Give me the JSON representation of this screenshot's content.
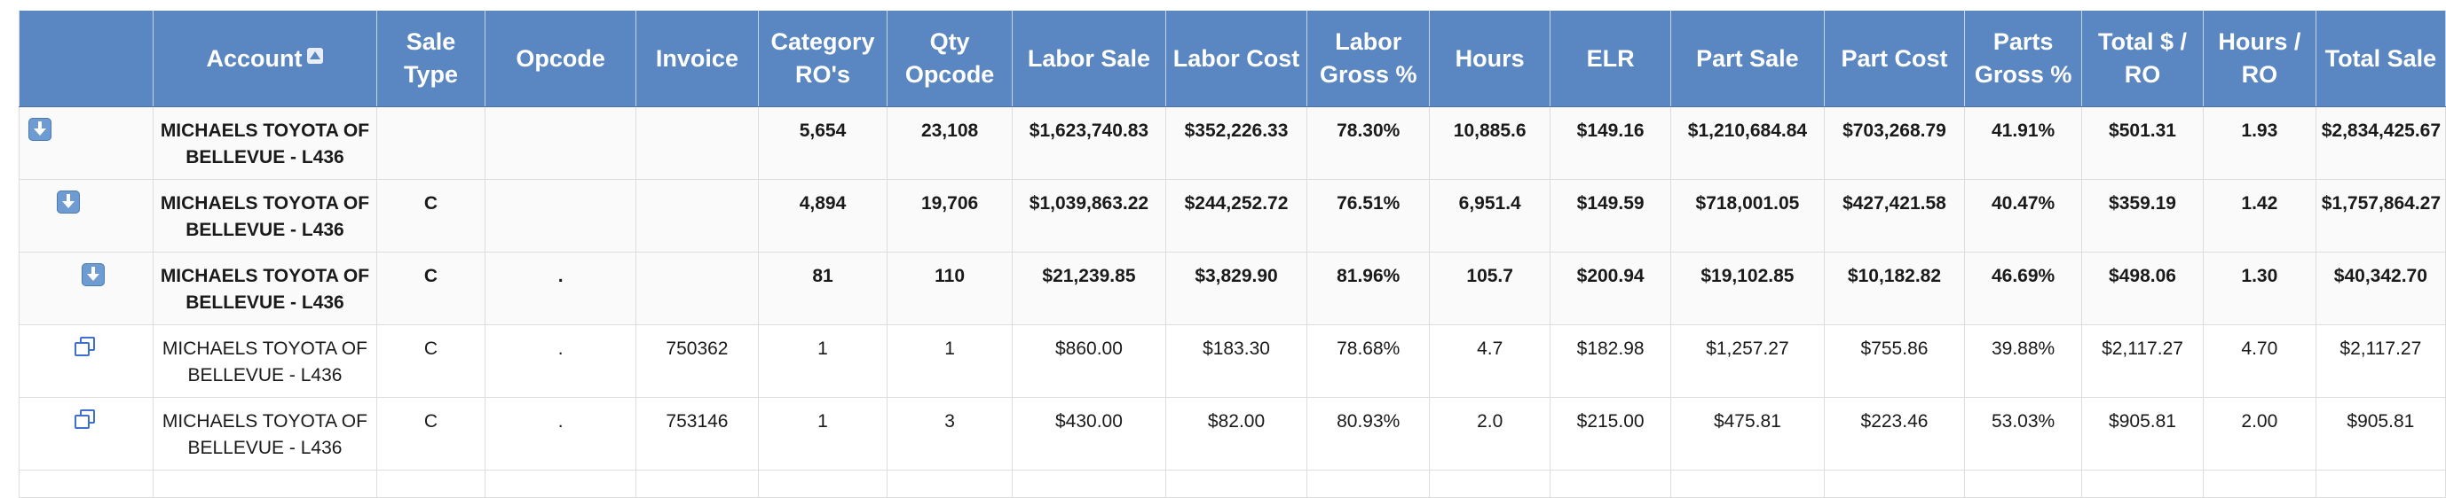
{
  "table": {
    "headers": [
      {
        "label": "",
        "sorted": false
      },
      {
        "label": "Account",
        "sorted": true,
        "sort_direction": "ascending"
      },
      {
        "label": "Sale Type"
      },
      {
        "label": "Opcode"
      },
      {
        "label": "Invoice"
      },
      {
        "label": "Category RO's"
      },
      {
        "label": "Qty Opcode"
      },
      {
        "label": "Labor Sale"
      },
      {
        "label": "Labor Cost"
      },
      {
        "label": "Labor Gross %"
      },
      {
        "label": "Hours"
      },
      {
        "label": "ELR"
      },
      {
        "label": "Part Sale"
      },
      {
        "label": "Part Cost"
      },
      {
        "label": "Parts Gross %"
      },
      {
        "label": "Total $ / RO"
      },
      {
        "label": "Hours / RO"
      },
      {
        "label": "Total Sale"
      }
    ],
    "rows": [
      {
        "kind": "group",
        "level": 0,
        "icon": "expand-down-icon",
        "cells": [
          "MICHAELS TOYOTA OF BELLEVUE - L436",
          "",
          "",
          "",
          "5,654",
          "23,108",
          "$1,623,740.83",
          "$352,226.33",
          "78.30%",
          "10,885.6",
          "$149.16",
          "$1,210,684.84",
          "$703,268.79",
          "41.91%",
          "$501.31",
          "1.93",
          "$2,834,425.67"
        ]
      },
      {
        "kind": "group",
        "level": 1,
        "icon": "expand-down-icon",
        "cells": [
          "MICHAELS TOYOTA OF BELLEVUE - L436",
          "C",
          "",
          "",
          "4,894",
          "19,706",
          "$1,039,863.22",
          "$244,252.72",
          "76.51%",
          "6,951.4",
          "$149.59",
          "$718,001.05",
          "$427,421.58",
          "40.47%",
          "$359.19",
          "1.42",
          "$1,757,864.27"
        ]
      },
      {
        "kind": "group",
        "level": 2,
        "icon": "expand-down-icon",
        "cells": [
          "MICHAELS TOYOTA OF BELLEVUE - L436",
          "C",
          ".",
          "",
          "81",
          "110",
          "$21,239.85",
          "$3,829.90",
          "81.96%",
          "105.7",
          "$200.94",
          "$19,102.85",
          "$10,182.82",
          "46.69%",
          "$498.06",
          "1.30",
          "$40,342.70"
        ]
      },
      {
        "kind": "detail",
        "level": 3,
        "icon": "open-window-icon",
        "cells": [
          "MICHAELS TOYOTA OF BELLEVUE - L436",
          "C",
          ".",
          "750362",
          "1",
          "1",
          "$860.00",
          "$183.30",
          "78.68%",
          "4.7",
          "$182.98",
          "$1,257.27",
          "$755.86",
          "39.88%",
          "$2,117.27",
          "4.70",
          "$2,117.27"
        ]
      },
      {
        "kind": "detail",
        "level": 3,
        "icon": "open-window-icon",
        "cells": [
          "MICHAELS TOYOTA OF BELLEVUE - L436",
          "C",
          ".",
          "753146",
          "1",
          "3",
          "$430.00",
          "$82.00",
          "80.93%",
          "2.0",
          "$215.00",
          "$475.81",
          "$223.46",
          "53.03%",
          "$905.81",
          "2.00",
          "$905.81"
        ]
      }
    ]
  },
  "colors": {
    "header_bg": "#5a86c1",
    "header_text": "#ffffff",
    "row_border": "#dddddd",
    "icon_blue": "#3f6fd1"
  }
}
